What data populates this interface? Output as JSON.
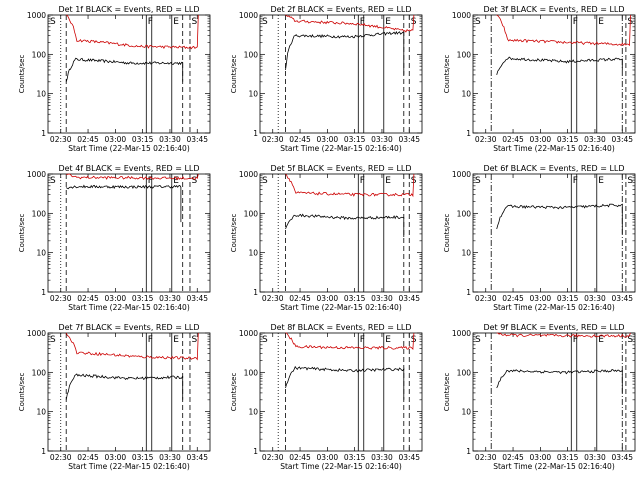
{
  "figure": {
    "ylabel": "Counts/sec",
    "xlabel": "Start Time (22-Mar-15 02:16:40)",
    "yticks": [
      "1",
      "10",
      "100",
      "1000"
    ],
    "colors": {
      "events": "#000000",
      "lld": "#cc0000",
      "axes": "#000000",
      "background": "#ffffff"
    }
  },
  "chart_data": [
    {
      "type": "line",
      "title": "Det 1f BLACK = Events, RED = LLD",
      "xlabel": "Start Time (22-Mar-15 02:16:40)",
      "ylabel": "Counts/sec",
      "y_scale": "log",
      "ylim": [
        1,
        1000
      ],
      "xlim": [
        "02:23",
        "03:52"
      ],
      "xticks": [
        "02:30",
        "02:45",
        "03:00",
        "03:15",
        "03:30",
        "03:45"
      ],
      "markers": [
        {
          "time": "02:30",
          "style": "dotted",
          "label": ""
        },
        {
          "time": "02:33",
          "style": "dashed",
          "label": ""
        },
        {
          "time": "03:17",
          "style": "solid",
          "label": "F"
        },
        {
          "time": "03:20",
          "style": "solid",
          "label": ""
        },
        {
          "time": "03:31",
          "style": "solid",
          "label": "E"
        },
        {
          "time": "03:37",
          "style": "dashed",
          "label": ""
        },
        {
          "time": "03:41",
          "style": "dashed",
          "label": "S"
        }
      ],
      "annotations": [
        {
          "label": "S",
          "pos": "top-left"
        }
      ],
      "series": [
        {
          "name": "BLACK = Events",
          "color": "#000000",
          "t0": "02:33",
          "t1": "03:37",
          "start": 20,
          "level": 75,
          "dip": 60,
          "end_level": 60,
          "end_drop": 20
        },
        {
          "name": "RED = LLD",
          "color": "#cc0000",
          "t0": "02:33",
          "t1": "03:45",
          "start": 1000,
          "level": 230,
          "dip": 160,
          "end_level": 150,
          "end_rise": 1000
        }
      ]
    },
    {
      "type": "line",
      "title": "Det 2f BLACK = Events, RED = LLD",
      "xlabel": "Start Time (22-Mar-15 02:16:40)",
      "ylabel": "Counts/sec",
      "y_scale": "log",
      "ylim": [
        1,
        1000
      ],
      "xlim": [
        "02:23",
        "03:52"
      ],
      "xticks": [
        "02:30",
        "02:45",
        "03:00",
        "03:15",
        "03:30",
        "03:45"
      ],
      "markers": [
        {
          "time": "02:33",
          "style": "dotted",
          "label": ""
        },
        {
          "time": "02:37",
          "style": "dashed",
          "label": ""
        },
        {
          "time": "03:17",
          "style": "solid",
          "label": "F"
        },
        {
          "time": "03:20",
          "style": "solid",
          "label": ""
        },
        {
          "time": "03:31",
          "style": "solid",
          "label": "E"
        },
        {
          "time": "03:42",
          "style": "dashed",
          "label": ""
        },
        {
          "time": "03:45",
          "style": "dashed",
          "label": "S"
        }
      ],
      "annotations": [
        {
          "label": "S",
          "pos": "top-left"
        }
      ],
      "series": [
        {
          "name": "BLACK = Events",
          "color": "#000000",
          "t0": "02:37",
          "t1": "03:42",
          "start": 40,
          "level": 300,
          "dip": 280,
          "end_level": 350,
          "end_drop": 30
        },
        {
          "name": "RED = LLD",
          "color": "#cc0000",
          "t0": "02:37",
          "t1": "03:47",
          "start": 1000,
          "level": 700,
          "dip": 600,
          "end_level": 400,
          "end_rise": 1000
        }
      ]
    },
    {
      "type": "line",
      "title": "Det 3f BLACK = Events, RED = LLD",
      "xlabel": "Start Time (22-Mar-15 02:16:40)",
      "ylabel": "Counts/sec",
      "y_scale": "log",
      "ylim": [
        1,
        1000
      ],
      "xlim": [
        "02:23",
        "03:52"
      ],
      "xticks": [
        "02:30",
        "02:45",
        "03:00",
        "03:15",
        "03:30",
        "03:45"
      ],
      "markers": [
        {
          "time": "02:33",
          "style": "dashdot",
          "label": ""
        },
        {
          "time": "03:17",
          "style": "solid",
          "label": "F"
        },
        {
          "time": "03:20",
          "style": "solid",
          "label": ""
        },
        {
          "time": "03:31",
          "style": "solid",
          "label": "E"
        },
        {
          "time": "03:45",
          "style": "dashdot",
          "label": ""
        },
        {
          "time": "03:47",
          "style": "dashed",
          "label": "S"
        }
      ],
      "annotations": [
        {
          "label": "S",
          "pos": "top-left"
        }
      ],
      "series": [
        {
          "name": "BLACK = Events",
          "color": "#000000",
          "t0": "02:36",
          "t1": "03:45",
          "start": 30,
          "level": 80,
          "dip": 65,
          "end_level": 75,
          "end_drop": 40
        },
        {
          "name": "RED = LLD",
          "color": "#cc0000",
          "t0": "02:36",
          "t1": "03:49",
          "start": 1000,
          "level": 230,
          "dip": 200,
          "end_level": 180,
          "end_rise": 1000
        }
      ]
    },
    {
      "type": "line",
      "title": "Det 4f BLACK = Events, RED = LLD",
      "xlabel": "Start Time (22-Mar-15 02:16:40)",
      "ylabel": "Counts/sec",
      "y_scale": "log",
      "ylim": [
        1,
        1000
      ],
      "xlim": [
        "02:23",
        "03:52"
      ],
      "xticks": [
        "02:30",
        "02:45",
        "03:00",
        "03:15",
        "03:30",
        "03:45"
      ],
      "markers": [
        {
          "time": "02:30",
          "style": "dotted",
          "label": ""
        },
        {
          "time": "02:33",
          "style": "dashed",
          "label": ""
        },
        {
          "time": "03:17",
          "style": "solid",
          "label": "F"
        },
        {
          "time": "03:20",
          "style": "solid",
          "label": ""
        },
        {
          "time": "03:31",
          "style": "solid",
          "label": "E"
        },
        {
          "time": "03:37",
          "style": "dashed",
          "label": ""
        },
        {
          "time": "03:41",
          "style": "dashed",
          "label": "S"
        }
      ],
      "annotations": [
        {
          "label": "S",
          "pos": "top-left"
        }
      ],
      "series": [
        {
          "name": "BLACK = Events",
          "color": "#000000",
          "t0": "02:33",
          "t1": "03:36",
          "start": 450,
          "level": 480,
          "dip": 470,
          "end_level": 480,
          "end_drop": 60
        },
        {
          "name": "RED = LLD",
          "color": "#cc0000",
          "t0": "02:33",
          "t1": "03:45",
          "start": 1000,
          "level": 820,
          "dip": 800,
          "end_level": 780,
          "end_rise": 1000
        }
      ]
    },
    {
      "type": "line",
      "title": "Det 5f BLACK = Events, RED = LLD",
      "xlabel": "Start Time (22-Mar-15 02:16:40)",
      "ylabel": "Counts/sec",
      "y_scale": "log",
      "ylim": [
        1,
        1000
      ],
      "xlim": [
        "02:23",
        "03:52"
      ],
      "xticks": [
        "02:30",
        "02:45",
        "03:00",
        "03:15",
        "03:30",
        "03:45"
      ],
      "markers": [
        {
          "time": "02:33",
          "style": "dotted",
          "label": ""
        },
        {
          "time": "02:37",
          "style": "dashed",
          "label": ""
        },
        {
          "time": "03:17",
          "style": "solid",
          "label": "F"
        },
        {
          "time": "03:20",
          "style": "solid",
          "label": ""
        },
        {
          "time": "03:31",
          "style": "solid",
          "label": "E"
        },
        {
          "time": "03:42",
          "style": "dashed",
          "label": ""
        },
        {
          "time": "03:45",
          "style": "dashed",
          "label": "S"
        }
      ],
      "annotations": [
        {
          "label": "S",
          "pos": "top-left"
        }
      ],
      "series": [
        {
          "name": "BLACK = Events",
          "color": "#000000",
          "t0": "02:37",
          "t1": "03:42",
          "start": 40,
          "level": 90,
          "dip": 75,
          "end_level": 80,
          "end_drop": 25
        },
        {
          "name": "RED = LLD",
          "color": "#cc0000",
          "t0": "02:37",
          "t1": "03:47",
          "start": 1000,
          "level": 330,
          "dip": 300,
          "end_level": 300,
          "end_rise": 1000
        }
      ]
    },
    {
      "type": "line",
      "title": "Det 6f BLACK = Events, RED = LLD",
      "xlabel": "Start Time (22-Mar-15 02:16:40)",
      "ylabel": "Counts/sec",
      "y_scale": "log",
      "ylim": [
        1,
        1000
      ],
      "xlim": [
        "02:23",
        "03:52"
      ],
      "xticks": [
        "02:30",
        "02:45",
        "03:00",
        "03:15",
        "03:30",
        "03:45"
      ],
      "markers": [
        {
          "time": "02:33",
          "style": "dashdot",
          "label": ""
        },
        {
          "time": "03:17",
          "style": "solid",
          "label": "F"
        },
        {
          "time": "03:20",
          "style": "solid",
          "label": ""
        },
        {
          "time": "03:31",
          "style": "solid",
          "label": "E"
        },
        {
          "time": "03:45",
          "style": "dashdot",
          "label": ""
        },
        {
          "time": "03:47",
          "style": "dashed",
          "label": "S"
        }
      ],
      "annotations": [
        {
          "label": "S",
          "pos": "top-left"
        }
      ],
      "series": [
        {
          "name": "BLACK = Events",
          "color": "#000000",
          "t0": "02:36",
          "t1": "03:45",
          "start": 40,
          "level": 150,
          "dip": 140,
          "end_level": 160,
          "end_drop": 30
        }
      ]
    },
    {
      "type": "line",
      "title": "Det 7f BLACK = Events, RED = LLD",
      "xlabel": "Start Time (22-Mar-15 02:16:40)",
      "ylabel": "Counts/sec",
      "y_scale": "log",
      "ylim": [
        1,
        1000
      ],
      "xlim": [
        "02:23",
        "03:52"
      ],
      "xticks": [
        "02:30",
        "02:45",
        "03:00",
        "03:15",
        "03:30",
        "03:45"
      ],
      "markers": [
        {
          "time": "02:30",
          "style": "dotted",
          "label": ""
        },
        {
          "time": "02:33",
          "style": "dashed",
          "label": ""
        },
        {
          "time": "03:17",
          "style": "solid",
          "label": "F"
        },
        {
          "time": "03:20",
          "style": "solid",
          "label": ""
        },
        {
          "time": "03:31",
          "style": "solid",
          "label": "E"
        },
        {
          "time": "03:37",
          "style": "dashed",
          "label": ""
        },
        {
          "time": "03:41",
          "style": "dashed",
          "label": "S"
        }
      ],
      "annotations": [
        {
          "label": "S",
          "pos": "top-left"
        }
      ],
      "series": [
        {
          "name": "BLACK = Events",
          "color": "#000000",
          "t0": "02:33",
          "t1": "03:37",
          "start": 20,
          "level": 85,
          "dip": 70,
          "end_level": 75,
          "end_drop": 20
        },
        {
          "name": "RED = LLD",
          "color": "#cc0000",
          "t0": "02:33",
          "t1": "03:45",
          "start": 1000,
          "level": 320,
          "dip": 250,
          "end_level": 230,
          "end_rise": 1000
        }
      ]
    },
    {
      "type": "line",
      "title": "Det 8f BLACK = Events, RED = LLD",
      "xlabel": "Start Time (22-Mar-15 02:16:40)",
      "ylabel": "Counts/sec",
      "y_scale": "log",
      "ylim": [
        1,
        1000
      ],
      "xlim": [
        "02:23",
        "03:52"
      ],
      "xticks": [
        "02:30",
        "02:45",
        "03:00",
        "03:15",
        "03:30",
        "03:45"
      ],
      "markers": [
        {
          "time": "02:33",
          "style": "dotted",
          "label": ""
        },
        {
          "time": "02:37",
          "style": "dashed",
          "label": ""
        },
        {
          "time": "03:17",
          "style": "solid",
          "label": "F"
        },
        {
          "time": "03:20",
          "style": "solid",
          "label": ""
        },
        {
          "time": "03:31",
          "style": "solid",
          "label": "E"
        },
        {
          "time": "03:42",
          "style": "dashed",
          "label": ""
        },
        {
          "time": "03:45",
          "style": "dashed",
          "label": "S"
        }
      ],
      "annotations": [
        {
          "label": "S",
          "pos": "top-left"
        }
      ],
      "series": [
        {
          "name": "BLACK = Events",
          "color": "#000000",
          "t0": "02:37",
          "t1": "03:42",
          "start": 40,
          "level": 130,
          "dip": 110,
          "end_level": 120,
          "end_drop": 20
        },
        {
          "name": "RED = LLD",
          "color": "#cc0000",
          "t0": "02:37",
          "t1": "03:47",
          "start": 1000,
          "level": 450,
          "dip": 420,
          "end_level": 420,
          "end_rise": 1000
        }
      ]
    },
    {
      "type": "line",
      "title": "Det 9f BLACK = Events, RED = LLD",
      "xlabel": "Start Time (22-Mar-15 02:16:40)",
      "ylabel": "Counts/sec",
      "y_scale": "log",
      "ylim": [
        1,
        1000
      ],
      "xlim": [
        "02:23",
        "03:52"
      ],
      "xticks": [
        "02:30",
        "02:45",
        "03:00",
        "03:15",
        "03:30",
        "03:45"
      ],
      "markers": [
        {
          "time": "02:33",
          "style": "dashdot",
          "label": ""
        },
        {
          "time": "03:17",
          "style": "solid",
          "label": "F"
        },
        {
          "time": "03:20",
          "style": "solid",
          "label": ""
        },
        {
          "time": "03:31",
          "style": "solid",
          "label": "E"
        },
        {
          "time": "03:45",
          "style": "dashdot",
          "label": ""
        },
        {
          "time": "03:47",
          "style": "dashed",
          "label": "S"
        }
      ],
      "annotations": [
        {
          "label": "S",
          "pos": "top-left"
        }
      ],
      "series": [
        {
          "name": "BLACK = Events",
          "color": "#000000",
          "t0": "02:36",
          "t1": "03:45",
          "start": 40,
          "level": 110,
          "dip": 100,
          "end_level": 110,
          "end_drop": 30
        },
        {
          "name": "RED = LLD",
          "color": "#cc0000",
          "t0": "02:36",
          "t1": "03:49",
          "start": 1000,
          "level": 880,
          "dip": 850,
          "end_level": 850,
          "end_rise": 1000
        }
      ]
    }
  ]
}
